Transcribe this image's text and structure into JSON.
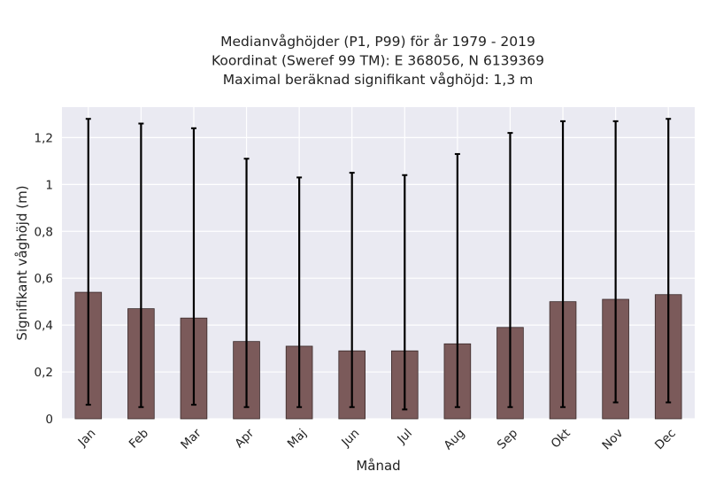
{
  "chart_data": {
    "type": "bar",
    "title_lines": [
      "Medianvåghöjder (P1, P99) för år 1979 - 2019",
      "Koordinat (Sweref 99 TM): E 368056, N 6139369",
      "Maximal beräknad signifikant våghöjd: 1,3 m"
    ],
    "xlabel": "Månad",
    "ylabel": "Signifikant våghöjd (m)",
    "categories": [
      "Jan",
      "Feb",
      "Mar",
      "Apr",
      "Maj",
      "Jun",
      "Jul",
      "Aug",
      "Sep",
      "Okt",
      "Nov",
      "Dec"
    ],
    "values": [
      0.54,
      0.47,
      0.43,
      0.33,
      0.31,
      0.29,
      0.29,
      0.32,
      0.39,
      0.5,
      0.51,
      0.53
    ],
    "p1": [
      0.06,
      0.05,
      0.06,
      0.05,
      0.05,
      0.05,
      0.04,
      0.05,
      0.05,
      0.05,
      0.07,
      0.07
    ],
    "p99": [
      1.28,
      1.26,
      1.24,
      1.11,
      1.03,
      1.05,
      1.04,
      1.13,
      1.22,
      1.27,
      1.27,
      1.28
    ],
    "ylim": [
      0,
      1.33
    ],
    "yticks": [
      0,
      0.2,
      0.4,
      0.6,
      0.8,
      1.0,
      1.2
    ],
    "ytick_labels": [
      "0",
      "0,2",
      "0,4",
      "0,6",
      "0,8",
      "1",
      "1,2"
    ],
    "grid": true,
    "colors": {
      "bar": "#7b5a5a",
      "bar_edge": "#3a2a2a",
      "error": "#000000",
      "background": "#eaeaf2",
      "grid": "#ffffff"
    }
  }
}
